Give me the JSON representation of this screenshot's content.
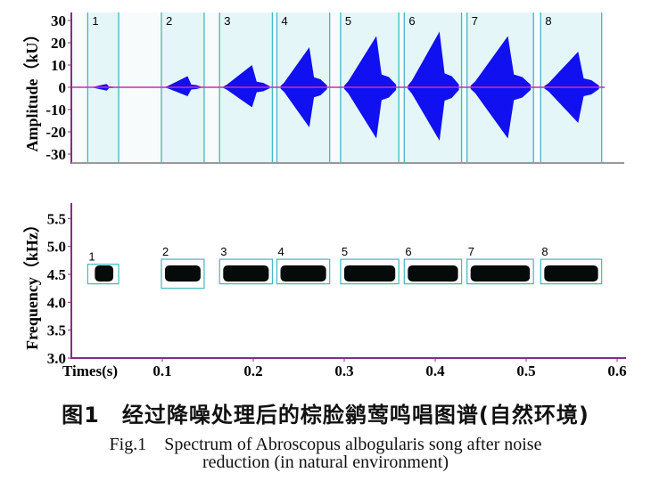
{
  "chart_data": [
    {
      "type": "area",
      "panel": "waveform",
      "ylabel": "Amplitude（kU）",
      "yticks": [
        "30",
        "20",
        "10",
        "0",
        "-10",
        "-20",
        "-30"
      ],
      "ylim": [
        -32,
        32
      ],
      "xlim": [
        0,
        0.6
      ],
      "syllables": [
        {
          "label": "1",
          "start": 0.018,
          "end": 0.052,
          "peak_pos": 1.5,
          "peak_neg": -1.5
        },
        {
          "label": "2",
          "start": 0.099,
          "end": 0.146,
          "peak_pos": 5,
          "peak_neg": -4
        },
        {
          "label": "3",
          "start": 0.163,
          "end": 0.221,
          "peak_pos": 10,
          "peak_neg": -9
        },
        {
          "label": "4",
          "start": 0.226,
          "end": 0.284,
          "peak_pos": 18,
          "peak_neg": -18
        },
        {
          "label": "5",
          "start": 0.296,
          "end": 0.36,
          "peak_pos": 23,
          "peak_neg": -23
        },
        {
          "label": "6",
          "start": 0.366,
          "end": 0.429,
          "peak_pos": 25,
          "peak_neg": -24
        },
        {
          "label": "7",
          "start": 0.435,
          "end": 0.508,
          "peak_pos": 23,
          "peak_neg": -23
        },
        {
          "label": "8",
          "start": 0.516,
          "end": 0.583,
          "peak_pos": 16,
          "peak_neg": -16
        }
      ],
      "colors": {
        "wave": "#1010f0",
        "zero_line": "#c030c0",
        "segment_fill": "#e4f6f8",
        "segment_line": "#40b8c0"
      }
    },
    {
      "type": "heatmap",
      "panel": "spectrogram",
      "ylabel": "Frequency（kHz）",
      "xlabel": "Times(s)",
      "yticks": [
        "5.5",
        "5.0",
        "4.5",
        "4.0",
        "3.5",
        "3.0"
      ],
      "xticks": [
        "0.1",
        "0.2",
        "0.3",
        "0.4",
        "0.5",
        "0.6"
      ],
      "ylim": [
        3.0,
        5.7
      ],
      "xlim": [
        0,
        0.6
      ],
      "syllables": [
        {
          "label": "1",
          "start": 0.018,
          "end": 0.052,
          "fmin": 4.33,
          "fmax": 4.68
        },
        {
          "label": "2",
          "start": 0.099,
          "end": 0.146,
          "fmin": 4.25,
          "fmax": 4.77
        },
        {
          "label": "3",
          "start": 0.163,
          "end": 0.221,
          "fmin": 4.33,
          "fmax": 4.77
        },
        {
          "label": "4",
          "start": 0.226,
          "end": 0.284,
          "fmin": 4.33,
          "fmax": 4.77
        },
        {
          "label": "5",
          "start": 0.296,
          "end": 0.36,
          "fmin": 4.33,
          "fmax": 4.77
        },
        {
          "label": "6",
          "start": 0.366,
          "end": 0.429,
          "fmin": 4.33,
          "fmax": 4.77
        },
        {
          "label": "7",
          "start": 0.435,
          "end": 0.508,
          "fmin": 4.33,
          "fmax": 4.77
        },
        {
          "label": "8",
          "start": 0.516,
          "end": 0.583,
          "fmin": 4.33,
          "fmax": 4.77
        }
      ],
      "colors": {
        "energy": "#050a0a",
        "box": "#40b8c0",
        "axis": "#8a2a8a"
      }
    }
  ],
  "caption": {
    "cn": "图1　经过降噪处理后的棕脸鹟莺鸣唱图谱(自然环境)",
    "en_line1": "Fig.1　Spectrum of Abroscopus albogularis song after noise",
    "en_line2": "reduction (in natural environment)"
  }
}
